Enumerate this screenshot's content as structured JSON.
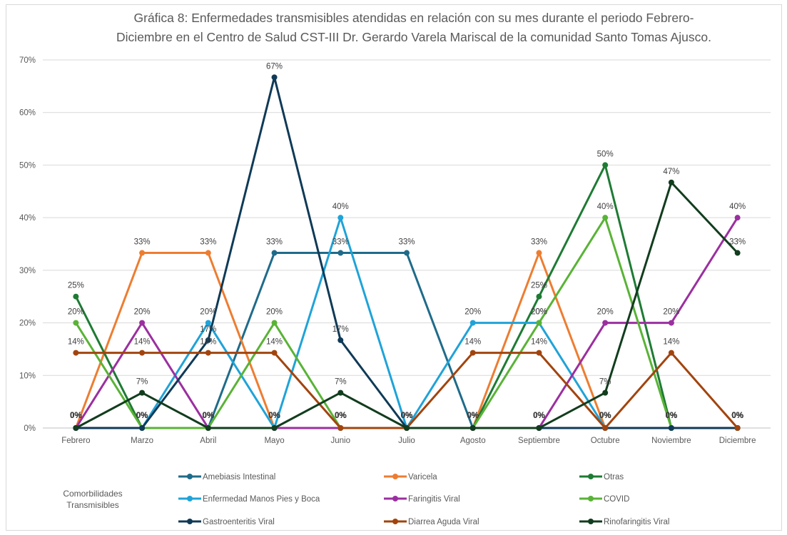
{
  "title_line1": "Gráfica 8: Enfermedades transmisibles atendidas en relación con su  mes durante el periodo Febrero-",
  "title_line2": "Diciembre en el Centro de Salud CST-III Dr. Gerardo Varela Mariscal de la comunidad Santo Tomas Ajusco.",
  "legend_caption_line1": "Comorbilidades",
  "legend_caption_line2": "Transmisibles",
  "chart_data": {
    "type": "line",
    "title": "Gráfica 8: Enfermedades transmisibles atendidas en relación con su mes durante el periodo Febrero-Diciembre en el Centro de Salud CST-III Dr. Gerardo Varela Mariscal de la comunidad Santo Tomas Ajusco.",
    "categories": [
      "Febrero",
      "Marzo",
      "Abril",
      "Mayo",
      "Junio",
      "Julio",
      "Agosto",
      "Septiembre",
      "Octubre",
      "Noviembre",
      "Diciembre"
    ],
    "ylim": [
      0,
      70
    ],
    "yticks": [
      "0%",
      "10%",
      "20%",
      "30%",
      "40%",
      "50%",
      "60%",
      "70%"
    ],
    "grid": true,
    "legend_position": "bottom",
    "series": [
      {
        "name": "Amebiasis Intestinal",
        "color": "#1f6b8a",
        "values": [
          0,
          0,
          0,
          33.3,
          33.3,
          33.3,
          0,
          0,
          0,
          0,
          0
        ],
        "labels": [
          "0%",
          "0%",
          "0%",
          "33%",
          "33%",
          "33%",
          "0%",
          "0%",
          "0%",
          "0%",
          "0%"
        ]
      },
      {
        "name": "Varicela",
        "color": "#ed7d31",
        "values": [
          0,
          33.3,
          33.3,
          0,
          0,
          0,
          0,
          33.3,
          0,
          0,
          0
        ],
        "labels": [
          "0%",
          "33%",
          "33%",
          "0%",
          "0%",
          "0%",
          "0%",
          "33%",
          "0%",
          "0%",
          "0%"
        ]
      },
      {
        "name": "Otras",
        "color": "#1e7b34",
        "values": [
          25,
          0,
          0,
          0,
          0,
          0,
          0,
          25,
          50,
          0,
          0
        ],
        "labels": [
          "25%",
          "0%",
          "0%",
          "0%",
          "0%",
          "0%",
          "0%",
          "25%",
          "50%",
          "0%",
          "0%"
        ]
      },
      {
        "name": "Enfermedad Manos Pies y Boca",
        "color": "#1fa3d8",
        "values": [
          0,
          0,
          20,
          0,
          40,
          0,
          20,
          20,
          0,
          0,
          0
        ],
        "labels": [
          "0%",
          "0%",
          "20%",
          "0%",
          "40%",
          "0%",
          "20%",
          "20%",
          "0%",
          "0%",
          "0%"
        ]
      },
      {
        "name": "Faringitis  Viral",
        "color": "#9b2fa0",
        "values": [
          0,
          20,
          0,
          0,
          0,
          0,
          0,
          0,
          20,
          20,
          40
        ],
        "labels": [
          "0%",
          "20%",
          "0%",
          "0%",
          "0%",
          "0%",
          "0%",
          "0%",
          "20%",
          "20%",
          "40%"
        ]
      },
      {
        "name": "COVID",
        "color": "#59b336",
        "values": [
          20,
          0,
          0,
          20,
          0,
          0,
          0,
          20,
          40,
          0,
          0
        ],
        "labels": [
          "20%",
          "0%",
          "0%",
          "20%",
          "0%",
          "0%",
          "0%",
          "20%",
          "40%",
          "0%",
          "0%"
        ]
      },
      {
        "name": "Gastroenteritis Viral",
        "color": "#0f3a57",
        "values": [
          0,
          0,
          16.7,
          66.7,
          16.7,
          0,
          0,
          0,
          0,
          0,
          0
        ],
        "labels": [
          "0%",
          "0%",
          "17%",
          "67%",
          "17%",
          "0%",
          "0%",
          "0%",
          "0%",
          "0%",
          "0%"
        ]
      },
      {
        "name": "Diarrea Aguda Viral",
        "color": "#a2440e",
        "values": [
          14.3,
          14.3,
          14.3,
          14.3,
          0,
          0,
          14.3,
          14.3,
          0,
          14.3,
          0
        ],
        "labels": [
          "14%",
          "14%",
          "14%",
          "14%",
          "0%",
          "0%",
          "14%",
          "14%",
          "0%",
          "14%",
          "0%"
        ]
      },
      {
        "name": "Rinofaringitis Viral",
        "color": "#123d1e",
        "values": [
          0,
          6.7,
          0,
          0,
          6.7,
          0,
          0,
          0,
          6.7,
          46.7,
          33.3
        ],
        "labels": [
          "0%",
          "7%",
          "0%",
          "0%",
          "7%",
          "0%",
          "0%",
          "0%",
          "7%",
          "47%",
          "33%"
        ]
      }
    ]
  }
}
